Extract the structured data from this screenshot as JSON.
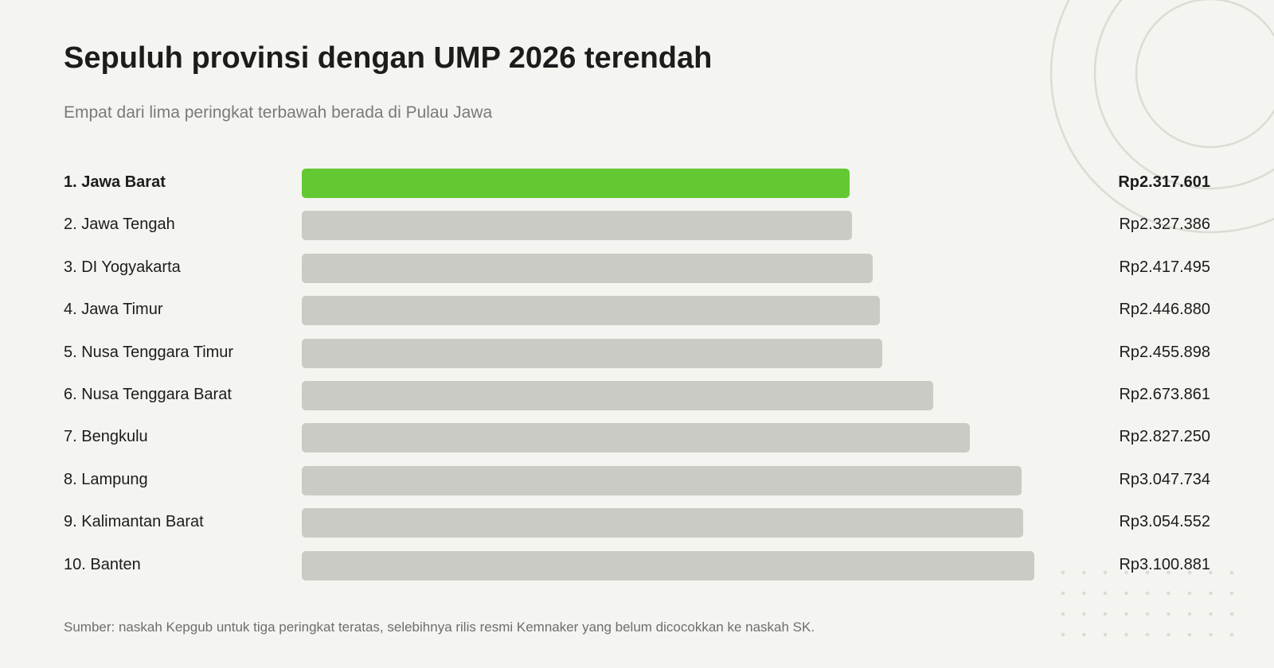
{
  "colors": {
    "background": "#f4f4f0",
    "highlight_bar": "#63c832",
    "default_bar": "#cbcbc6",
    "decoration": "#dcdcd6"
  },
  "chart_data": {
    "type": "bar",
    "orientation": "horizontal",
    "title": "Sepuluh provinsi dengan UMP 2026 terendah",
    "subtitle": "Empat dari lima peringkat terbawah berada di Pulau Jawa",
    "categories": [
      "1. Jawa Barat",
      "2. Jawa Tengah",
      "3. DI Yogyakarta",
      "4. Jawa Timur",
      "5. Nusa Tenggara Timur",
      "6. Nusa Tenggara Barat",
      "7. Bengkulu",
      "8. Lampung",
      "9. Kalimantan Barat",
      "10. Banten"
    ],
    "values": [
      2317601,
      2327386,
      2417495,
      2446880,
      2455898,
      2673861,
      2827250,
      3047734,
      3054552,
      3100881
    ],
    "value_labels": [
      "Rp2.317.601",
      "Rp2.327.386",
      "Rp2.417.495",
      "Rp2.446.880",
      "Rp2.455.898",
      "Rp2.673.861",
      "Rp2.827.250",
      "Rp3.047.734",
      "Rp3.054.552",
      "Rp3.100.881"
    ],
    "highlight_index": 0,
    "xlim": [
      0,
      3100881
    ],
    "grid": false,
    "legend": false,
    "source": "Sumber: naskah Kepgub untuk tiga peringkat teratas, selebihnya rilis resmi Kemnaker yang belum dicocokkan ke naskah SK."
  }
}
